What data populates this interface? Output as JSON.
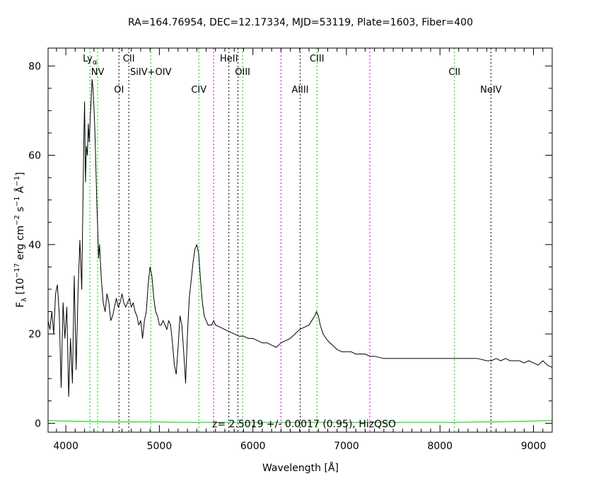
{
  "chart_data": {
    "type": "line",
    "title": "RA=164.76954, DEC=12.17334, MJD=53119, Plate=1603, Fiber=400",
    "xlabel_prefix": "Wavelength [",
    "xlabel_unit": "Å",
    "xlabel_suffix": "]",
    "ylabel_base": "F",
    "ylabel_sub": "λ",
    "ylabel_text1": " [10",
    "ylabel_exp1": "−17",
    "ylabel_text2": " erg cm",
    "ylabel_exp2": "−2",
    "ylabel_text3": " s",
    "ylabel_exp3": "−1",
    "ylabel_text4": " Å",
    "ylabel_exp4": "−1",
    "ylabel_text5": "]",
    "xlim": [
      3810,
      9200
    ],
    "ylim": [
      -2,
      84
    ],
    "xticks": [
      4000,
      5000,
      6000,
      7000,
      8000,
      9000
    ],
    "xtick_labels": [
      "4000",
      "5000",
      "6000",
      "7000",
      "8000",
      "9000"
    ],
    "yticks": [
      0,
      20,
      40,
      60,
      80
    ],
    "ytick_labels": [
      "0",
      "20",
      "40",
      "60",
      "80"
    ],
    "annotation": "z= 2.5019 +/- 0.0017 (0.95), HizQSO",
    "spectrum_color": "#000000",
    "error_color": "#00cc00",
    "spectrum": {
      "x": [
        3810,
        3830,
        3850,
        3870,
        3890,
        3910,
        3930,
        3950,
        3970,
        3990,
        4010,
        4030,
        4050,
        4070,
        4090,
        4110,
        4130,
        4150,
        4170,
        4190,
        4200,
        4210,
        4220,
        4230,
        4240,
        4250,
        4260,
        4270,
        4280,
        4290,
        4300,
        4310,
        4320,
        4330,
        4340,
        4350,
        4360,
        4380,
        4400,
        4420,
        4440,
        4460,
        4480,
        4500,
        4520,
        4540,
        4560,
        4580,
        4600,
        4620,
        4640,
        4660,
        4680,
        4700,
        4720,
        4740,
        4760,
        4780,
        4800,
        4820,
        4840,
        4860,
        4880,
        4900,
        4920,
        4940,
        4960,
        4980,
        5000,
        5020,
        5040,
        5060,
        5080,
        5100,
        5120,
        5140,
        5160,
        5180,
        5200,
        5220,
        5240,
        5260,
        5280,
        5300,
        5320,
        5340,
        5360,
        5380,
        5400,
        5420,
        5440,
        5460,
        5480,
        5500,
        5520,
        5540,
        5560,
        5580,
        5600,
        5650,
        5700,
        5750,
        5800,
        5850,
        5900,
        5950,
        6000,
        6050,
        6100,
        6150,
        6200,
        6250,
        6300,
        6350,
        6400,
        6450,
        6500,
        6550,
        6600,
        6630,
        6660,
        6680,
        6700,
        6720,
        6750,
        6800,
        6850,
        6900,
        6950,
        7000,
        7050,
        7100,
        7150,
        7200,
        7250,
        7300,
        7400,
        7500,
        7600,
        7700,
        7800,
        7900,
        8000,
        8100,
        8200,
        8300,
        8400,
        8500,
        8550,
        8600,
        8650,
        8700,
        8750,
        8800,
        8850,
        8900,
        8950,
        9000,
        9050,
        9100,
        9150,
        9200
      ],
      "y": [
        23,
        21,
        25,
        20,
        29,
        31,
        24,
        8,
        27,
        19,
        26,
        6,
        19,
        9,
        33,
        12,
        29,
        41,
        30,
        61,
        72,
        54,
        62,
        60,
        67,
        63,
        68,
        72,
        77,
        75,
        71,
        66,
        58,
        50,
        44,
        37,
        40,
        32,
        27,
        25,
        29,
        27,
        23,
        24,
        26,
        28,
        26,
        27,
        29,
        27,
        26,
        27,
        28,
        26,
        27,
        25,
        24,
        22,
        23,
        19,
        23,
        25,
        31,
        35,
        33,
        28,
        25,
        24,
        22,
        22,
        23,
        22,
        21,
        23,
        22,
        18,
        13,
        11,
        17,
        24,
        22,
        16,
        9,
        20,
        28,
        32,
        36,
        39,
        40,
        38,
        32,
        27,
        24,
        23,
        22,
        22,
        22,
        23,
        22,
        21.5,
        21,
        20.5,
        20,
        19.5,
        19.5,
        19,
        19,
        18.5,
        18,
        18,
        17.5,
        17,
        18,
        18.5,
        19,
        20,
        21,
        21.5,
        22,
        23,
        24,
        25,
        24,
        22,
        20,
        18.5,
        17.5,
        16.5,
        16,
        16,
        16,
        15.5,
        15.5,
        15.5,
        15,
        15,
        14.5,
        14.5,
        14.5,
        14.5,
        14.5,
        14.5,
        14.5,
        14.5,
        14.5,
        14.5,
        14.5,
        14,
        14,
        14.5,
        14,
        14.5,
        14,
        14,
        14,
        13.5,
        14,
        13.5,
        13,
        14,
        13,
        12.5
      ]
    },
    "error": {
      "x": [
        3810,
        4000,
        4200,
        4400,
        4600,
        4800,
        5000,
        5200,
        5400,
        5600,
        5800,
        6000,
        6200,
        6400,
        6600,
        6800,
        7000,
        7200,
        7400,
        7600,
        7800,
        8000,
        8200,
        8400,
        8600,
        8800,
        9000,
        9200
      ],
      "y": [
        0.6,
        0.5,
        0.4,
        0.3,
        0.3,
        0.3,
        0.3,
        0.2,
        0.2,
        0.2,
        0.2,
        0.2,
        0.2,
        0.2,
        0.2,
        0.2,
        0.2,
        0.2,
        0.2,
        0.2,
        0.2,
        0.2,
        0.2,
        0.3,
        0.3,
        0.4,
        0.5,
        0.6
      ]
    },
    "lines": [
      {
        "name": "Ly",
        "sub": "α",
        "x": 4258,
        "color": "#00cc00",
        "label_y": 81
      },
      {
        "name": "NV",
        "x": 4340,
        "color": "#00cc00",
        "label_y": 78
      },
      {
        "name": "OI",
        "x": 4568,
        "color": "#000000",
        "label_y": 74
      },
      {
        "name": "CII",
        "x": 4673,
        "color": "#000000",
        "label_y": 81
      },
      {
        "name": "SiIV+OIV",
        "x": 4908,
        "color": "#00cc00",
        "label_y": 78
      },
      {
        "name": "CIV",
        "x": 5422,
        "color": "#00cc00",
        "label_y": 74
      },
      {
        "name": "",
        "x": 5580,
        "color": "#cc00cc"
      },
      {
        "name": "HeII",
        "x": 5743,
        "color": "#000000",
        "label_y": 81
      },
      {
        "name": "",
        "x": 5840,
        "color": "#000000"
      },
      {
        "name": "OIII",
        "x": 5890,
        "color": "#00cc00",
        "label_y": 78
      },
      {
        "name": "",
        "x": 6300,
        "color": "#cc00cc"
      },
      {
        "name": "AlIII",
        "x": 6505,
        "color": "#000000",
        "label_y": 74
      },
      {
        "name": "CIII",
        "x": 6685,
        "color": "#00cc00",
        "label_y": 81
      },
      {
        "name": "",
        "x": 7250,
        "color": "#cc00cc"
      },
      {
        "name": "CII",
        "x": 8155,
        "color": "#00cc00",
        "label_y": 78
      },
      {
        "name": "NeIV",
        "x": 8545,
        "color": "#000000",
        "label_y": 74
      }
    ]
  }
}
